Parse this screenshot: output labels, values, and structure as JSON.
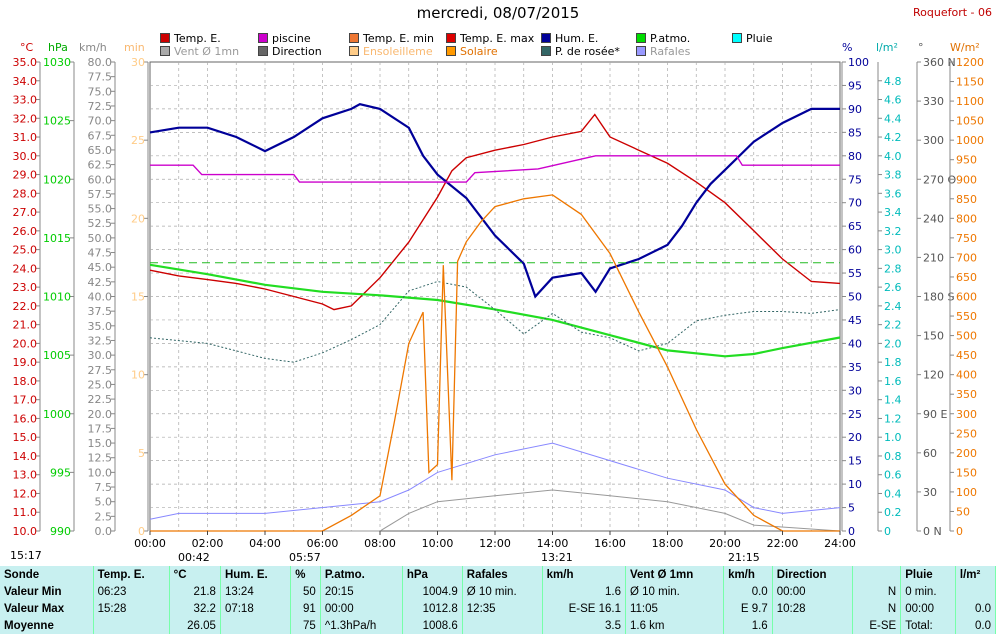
{
  "title": "mercredi, 08/07/2015",
  "station": "Roquefort - 06",
  "legend": [
    {
      "label": "Temp. E.",
      "color": "#cc0000"
    },
    {
      "label": "piscine",
      "color": "#cc00cc"
    },
    {
      "label": "Temp. E. min",
      "color": "#ee7733"
    },
    {
      "label": "Temp. E. max",
      "color": "#dd0000"
    },
    {
      "label": "Hum. E.",
      "color": "#000099"
    },
    {
      "label": "P.atmo.",
      "color": "#00dd00"
    },
    {
      "label": "Pluie",
      "color": "#00ffff"
    },
    {
      "label": "Vent Ø 1mn",
      "color": "#aaaaaa"
    },
    {
      "label": "Direction",
      "color": "#666666"
    },
    {
      "label": "Ensoleilleme",
      "color": "#ffcc88"
    },
    {
      "label": "Solaire",
      "color": "#ff9900"
    },
    {
      "label": "P. de rosée*",
      "color": "#336666"
    },
    {
      "label": "Rafales",
      "color": "#9999ff"
    }
  ],
  "axis_units": {
    "temp": "°C",
    "press": "hPa",
    "wind": "km/h",
    "min": "min",
    "hum": "%",
    "rain": "l/m²",
    "dir": "°",
    "solar": "W/m²"
  },
  "colors": {
    "temp": "#cc0000",
    "press": "#00cc00",
    "wind": "#888888",
    "min": "#ffcc88",
    "hum": "#000099",
    "rain": "#00bbbb",
    "dir": "#555555",
    "solar": "#ee7700",
    "dew": "#336666",
    "gust": "#8888ff",
    "pool": "#cc00cc"
  },
  "chart_data": {
    "type": "line",
    "x_ticks": [
      "00:00",
      "02:00",
      "04:00",
      "06:00",
      "08:00",
      "10:00",
      "12:00",
      "14:00",
      "16:00",
      "18:00",
      "20:00",
      "22:00",
      "24:00"
    ],
    "x_range_hours": [
      0,
      24
    ],
    "axes": {
      "temp_c": {
        "range": [
          10,
          35
        ],
        "ticks": [
          "35.0",
          "34.0",
          "33.0",
          "32.0",
          "31.0",
          "30.0",
          "29.0",
          "28.0",
          "27.0",
          "26.0",
          "25.0",
          "24.0",
          "23.0",
          "22.0",
          "21.0",
          "20.0",
          "19.0",
          "18.0",
          "17.0",
          "16.0",
          "15.0",
          "14.0",
          "13.0",
          "12.0",
          "11.0",
          "10.0"
        ]
      },
      "pressure_hpa": {
        "range": [
          990,
          1030
        ],
        "ticks": [
          "1030",
          "1025",
          "1020",
          "1015",
          "1010",
          "1005",
          "1000",
          "995",
          "990"
        ]
      },
      "wind_kmh": {
        "range": [
          0,
          80
        ],
        "ticks": [
          "80.0",
          "77.5",
          "75.0",
          "72.5",
          "70.0",
          "67.5",
          "65.0",
          "62.5",
          "60.0",
          "57.5",
          "55.0",
          "52.5",
          "50.0",
          "47.5",
          "45.0",
          "42.5",
          "40.0",
          "37.5",
          "35.0",
          "32.5",
          "30.0",
          "27.5",
          "25.0",
          "22.5",
          "20.0",
          "17.5",
          "15.0",
          "12.5",
          "10.0",
          "7.5",
          "5.0",
          "2.5",
          "0.0"
        ]
      },
      "sun_min": {
        "range": [
          0,
          30
        ],
        "ticks": [
          "30",
          "25",
          "20",
          "15",
          "10",
          "5",
          "0"
        ]
      },
      "humidity_pct": {
        "range": [
          0,
          100
        ],
        "ticks": [
          "100",
          "95",
          "90",
          "85",
          "80",
          "75",
          "70",
          "65",
          "60",
          "55",
          "50",
          "45",
          "40",
          "35",
          "30",
          "25",
          "20",
          "15",
          "10",
          "5",
          "0"
        ]
      },
      "rain_lm2": {
        "range": [
          0,
          5
        ],
        "ticks": [
          "4.8",
          "4.6",
          "4.4",
          "4.2",
          "4.0",
          "3.8",
          "3.6",
          "3.4",
          "3.2",
          "3.0",
          "2.8",
          "2.6",
          "2.4",
          "2.2",
          "2.0",
          "1.8",
          "1.6",
          "1.4",
          "1.2",
          "1.0",
          "0.8",
          "0.6",
          "0.4",
          "0.2",
          "0"
        ]
      },
      "direction_deg": {
        "range": [
          0,
          360
        ],
        "ticks": [
          "360 N",
          "330",
          "300",
          "270 O",
          "240",
          "210",
          "180 S",
          "150",
          "120",
          "90 E",
          "60",
          "30",
          "0 N"
        ]
      },
      "solar_wm2": {
        "range": [
          0,
          1200
        ],
        "ticks": [
          "1200",
          "1150",
          "1100",
          "1050",
          "1000",
          "950",
          "900",
          "850",
          "800",
          "750",
          "700",
          "650",
          "600",
          "550",
          "500",
          "450",
          "400",
          "350",
          "300",
          "250",
          "200",
          "150",
          "100",
          "50",
          "0"
        ]
      }
    },
    "series": [
      {
        "name": "Temp. E.",
        "unit": "°C",
        "points": [
          [
            0,
            23.9
          ],
          [
            1,
            23.6
          ],
          [
            2,
            23.4
          ],
          [
            3,
            23.2
          ],
          [
            4,
            22.9
          ],
          [
            5,
            22.5
          ],
          [
            6,
            22.1
          ],
          [
            6.4,
            21.8
          ],
          [
            7,
            22.0
          ],
          [
            8,
            23.5
          ],
          [
            9,
            25.4
          ],
          [
            10,
            27.8
          ],
          [
            10.5,
            29.2
          ],
          [
            11,
            29.9
          ],
          [
            12,
            30.3
          ],
          [
            13,
            30.6
          ],
          [
            14,
            31.0
          ],
          [
            15,
            31.3
          ],
          [
            15.47,
            32.2
          ],
          [
            16,
            31.0
          ],
          [
            17,
            30.3
          ],
          [
            18,
            29.6
          ],
          [
            19,
            28.6
          ],
          [
            20,
            27.5
          ],
          [
            21,
            26.0
          ],
          [
            22,
            24.5
          ],
          [
            23,
            23.3
          ],
          [
            24,
            23.2
          ]
        ]
      },
      {
        "name": "Hum. E.",
        "unit": "%",
        "points": [
          [
            0,
            85
          ],
          [
            1,
            86
          ],
          [
            2,
            86
          ],
          [
            3,
            84
          ],
          [
            4,
            81
          ],
          [
            5,
            84
          ],
          [
            6,
            88
          ],
          [
            7,
            90
          ],
          [
            7.3,
            91
          ],
          [
            8,
            90
          ],
          [
            9,
            86
          ],
          [
            9.5,
            80
          ],
          [
            10,
            76
          ],
          [
            11,
            71
          ],
          [
            12,
            63
          ],
          [
            13,
            57
          ],
          [
            13.4,
            50
          ],
          [
            14,
            54
          ],
          [
            15,
            55
          ],
          [
            15.5,
            51
          ],
          [
            16,
            56
          ],
          [
            17,
            58
          ],
          [
            18,
            61
          ],
          [
            18.5,
            65
          ],
          [
            19,
            70
          ],
          [
            19.5,
            74
          ],
          [
            20,
            77
          ],
          [
            21,
            83
          ],
          [
            22,
            87
          ],
          [
            23,
            90
          ],
          [
            24,
            90
          ]
        ]
      },
      {
        "name": "P.atmo.",
        "unit": "hPa",
        "points": [
          [
            0,
            1012.7
          ],
          [
            2,
            1011.9
          ],
          [
            4,
            1011.0
          ],
          [
            6,
            1010.4
          ],
          [
            8,
            1010.1
          ],
          [
            10,
            1009.7
          ],
          [
            12,
            1008.9
          ],
          [
            14,
            1008.0
          ],
          [
            16,
            1006.7
          ],
          [
            18,
            1005.4
          ],
          [
            20,
            1004.9
          ],
          [
            21,
            1005.1
          ],
          [
            22,
            1005.6
          ],
          [
            24,
            1006.5
          ]
        ]
      },
      {
        "name": "piscine",
        "unit": "°C",
        "points": [
          [
            0,
            29.5
          ],
          [
            1.5,
            29.5
          ],
          [
            1.8,
            29.0
          ],
          [
            5,
            29.0
          ],
          [
            5.2,
            28.6
          ],
          [
            11,
            28.6
          ],
          [
            11.3,
            29.1
          ],
          [
            13.5,
            29.3
          ],
          [
            15.5,
            30.0
          ],
          [
            20.4,
            30.0
          ],
          [
            20.6,
            29.5
          ],
          [
            24,
            29.5
          ]
        ]
      },
      {
        "name": "P. de rosée*",
        "unit": "°C",
        "points": [
          [
            0,
            20.3
          ],
          [
            2,
            20.0
          ],
          [
            4,
            19.2
          ],
          [
            5,
            19.0
          ],
          [
            6,
            19.5
          ],
          [
            7,
            20.2
          ],
          [
            8,
            21.0
          ],
          [
            9,
            22.8
          ],
          [
            10,
            23.3
          ],
          [
            11,
            23.0
          ],
          [
            12,
            21.8
          ],
          [
            13,
            20.5
          ],
          [
            14,
            21.6
          ],
          [
            15,
            20.6
          ],
          [
            16,
            20.3
          ],
          [
            17,
            19.6
          ],
          [
            18,
            20.0
          ],
          [
            19,
            21.2
          ],
          [
            20,
            21.5
          ],
          [
            21,
            21.7
          ],
          [
            22,
            21.7
          ],
          [
            23,
            21.6
          ],
          [
            24,
            21.8
          ]
        ]
      },
      {
        "name": "Solaire",
        "unit": "W/m²",
        "points": [
          [
            0,
            0
          ],
          [
            6,
            0
          ],
          [
            7,
            40
          ],
          [
            8,
            90
          ],
          [
            8.5,
            280
          ],
          [
            9,
            480
          ],
          [
            9.5,
            560
          ],
          [
            9.7,
            150
          ],
          [
            10,
            170
          ],
          [
            10.2,
            680
          ],
          [
            10.5,
            130
          ],
          [
            10.7,
            690
          ],
          [
            11,
            740
          ],
          [
            11.5,
            790
          ],
          [
            12,
            830
          ],
          [
            13,
            850
          ],
          [
            14,
            860
          ],
          [
            15,
            810
          ],
          [
            16,
            710
          ],
          [
            17,
            560
          ],
          [
            18,
            420
          ],
          [
            19,
            260
          ],
          [
            20,
            120
          ],
          [
            21,
            40
          ],
          [
            22,
            0
          ],
          [
            24,
            0
          ]
        ]
      },
      {
        "name": "Vent Ø 1mn",
        "unit": "km/h",
        "points": [
          [
            0,
            0
          ],
          [
            8,
            0
          ],
          [
            9,
            3
          ],
          [
            10,
            5
          ],
          [
            12,
            6
          ],
          [
            14,
            7
          ],
          [
            16,
            6
          ],
          [
            18,
            5
          ],
          [
            20,
            3
          ],
          [
            21,
            1
          ],
          [
            24,
            0
          ]
        ]
      },
      {
        "name": "Rafales",
        "unit": "km/h",
        "points": [
          [
            0,
            2
          ],
          [
            1,
            3
          ],
          [
            4,
            3
          ],
          [
            8,
            5
          ],
          [
            9,
            7
          ],
          [
            10,
            10
          ],
          [
            12,
            13
          ],
          [
            14,
            15
          ],
          [
            16,
            12
          ],
          [
            18,
            9
          ],
          [
            20,
            7
          ],
          [
            21,
            4
          ],
          [
            22,
            3
          ],
          [
            24,
            4
          ]
        ]
      }
    ],
    "ref_lines": [
      {
        "axis": "temp_c",
        "value": 24.3,
        "style": "dashed"
      }
    ],
    "sun_markers": {
      "sunrise": "05:57",
      "sunset": "21:15",
      "noon": "13:21",
      "day_start": "00:42"
    }
  },
  "footer_left": "15:17",
  "stats": {
    "headers": [
      {
        "a": "Sonde",
        "b": ""
      },
      {
        "a": "Temp. E.",
        "b": "°C"
      },
      {
        "a": "Hum. E.",
        "b": "%"
      },
      {
        "a": "P.atmo.",
        "b": "hPa"
      },
      {
        "a": "Rafales",
        "b": "km/h"
      },
      {
        "a": "Vent Ø 1mn",
        "b": "km/h"
      },
      {
        "a": "Direction",
        "b": ""
      },
      {
        "a": "Pluie",
        "b": "l/m²"
      }
    ],
    "rows": [
      [
        "Valeur Min",
        "06:23",
        "21.8",
        "13:24",
        "50",
        "20:15",
        "1004.9",
        "Ø 10 min.",
        "1.6",
        "Ø 10 min.",
        "0.0",
        "00:00",
        "N",
        "0 min.",
        ""
      ],
      [
        "Valeur Max",
        "15:28",
        "32.2",
        "07:18",
        "91",
        "00:00",
        "1012.8",
        "12:35",
        "E-SE 16.1",
        "11:05",
        "E 9.7",
        "10:28",
        "N",
        "00:00",
        "0.0"
      ],
      [
        "Moyenne",
        "",
        "26.05",
        "",
        "75",
        "^1.3hPa/h",
        "1008.6",
        "",
        "3.5",
        "1.6 km",
        "1.6",
        "",
        "E-SE",
        "Total:",
        "0.0"
      ]
    ]
  }
}
